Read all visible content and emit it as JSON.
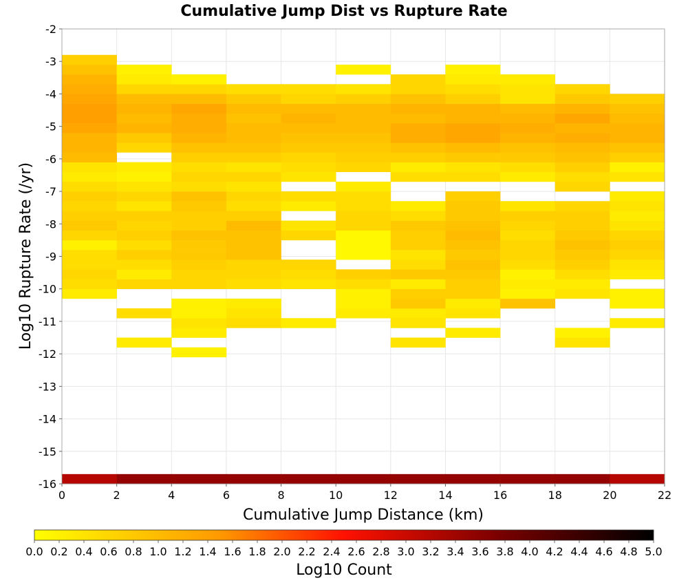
{
  "chart_data": {
    "type": "heatmap",
    "title": "Cumulative Jump Dist vs Rupture Rate",
    "xlabel": "Cumulative Jump Distance (km)",
    "ylabel": "Log10 Rupture Rate (/yr)",
    "colorbar_label": "Log10 Count",
    "xlim": [
      0,
      22
    ],
    "ylim": [
      -16,
      -2
    ],
    "x_ticks": [
      "0",
      "2",
      "4",
      "6",
      "8",
      "10",
      "12",
      "14",
      "16",
      "18",
      "20",
      "22"
    ],
    "y_ticks": [
      "-2",
      "-3",
      "-4",
      "-5",
      "-6",
      "-7",
      "-8",
      "-9",
      "-10",
      "-11",
      "-12",
      "-13",
      "-14",
      "-15",
      "-16"
    ],
    "colorbar_ticks": [
      "0.0",
      "0.2",
      "0.4",
      "0.6",
      "0.8",
      "1.0",
      "1.2",
      "1.4",
      "1.6",
      "1.8",
      "2.0",
      "2.2",
      "2.4",
      "2.6",
      "2.8",
      "3.0",
      "3.2",
      "3.4",
      "3.6",
      "3.8",
      "4.0",
      "4.2",
      "4.4",
      "4.6",
      "4.8",
      "5.0"
    ],
    "colorbar_range": [
      0,
      5
    ],
    "x_bin_width_km": 2,
    "y_bin_height": 0.3,
    "grid": true,
    "bins": [
      {
        "x": 0,
        "values": [
          [
            -16.0,
            3.2
          ],
          [
            -10.3,
            0.3
          ],
          [
            -10.0,
            0.5
          ],
          [
            -9.7,
            0.6
          ],
          [
            -9.4,
            0.5
          ],
          [
            -9.1,
            0.5
          ],
          [
            -8.8,
            0.2
          ],
          [
            -8.5,
            0.6
          ],
          [
            -8.2,
            0.8
          ],
          [
            -7.9,
            0.7
          ],
          [
            -7.6,
            0.6
          ],
          [
            -7.3,
            0.7
          ],
          [
            -7.0,
            0.5
          ],
          [
            -6.7,
            0.3
          ],
          [
            -6.4,
            0.4
          ],
          [
            -6.1,
            1.0
          ],
          [
            -5.8,
            1.1
          ],
          [
            -5.5,
            1.1
          ],
          [
            -5.2,
            1.3
          ],
          [
            -4.9,
            1.4
          ],
          [
            -4.6,
            1.4
          ],
          [
            -4.3,
            1.3
          ],
          [
            -4.0,
            1.2
          ],
          [
            -3.7,
            1.1
          ],
          [
            -3.4,
            0.9
          ],
          [
            -3.1,
            0.7
          ]
        ]
      },
      {
        "x": 2,
        "values": [
          [
            -16.0,
            3.5
          ],
          [
            -11.8,
            0.3
          ],
          [
            -10.9,
            0.5
          ],
          [
            -10.0,
            0.6
          ],
          [
            -9.7,
            0.3
          ],
          [
            -9.4,
            0.5
          ],
          [
            -9.1,
            0.7
          ],
          [
            -8.8,
            0.5
          ],
          [
            -8.5,
            0.7
          ],
          [
            -8.2,
            0.6
          ],
          [
            -7.9,
            0.7
          ],
          [
            -7.6,
            0.4
          ],
          [
            -7.3,
            0.6
          ],
          [
            -7.0,
            0.4
          ],
          [
            -6.7,
            0.2
          ],
          [
            -6.4,
            0.3
          ],
          [
            -5.8,
            0.6
          ],
          [
            -5.5,
            0.8
          ],
          [
            -5.2,
            1.1
          ],
          [
            -4.9,
            1.0
          ],
          [
            -4.6,
            1.1
          ],
          [
            -4.3,
            1.0
          ],
          [
            -4.0,
            0.6
          ],
          [
            -3.7,
            0.3
          ],
          [
            -3.4,
            0.2
          ]
        ]
      },
      {
        "x": 4,
        "values": [
          [
            -16.0,
            3.5
          ],
          [
            -12.1,
            0.2
          ],
          [
            -11.5,
            0.3
          ],
          [
            -11.2,
            0.4
          ],
          [
            -10.9,
            0.2
          ],
          [
            -10.6,
            0.2
          ],
          [
            -10.0,
            0.6
          ],
          [
            -9.7,
            0.6
          ],
          [
            -9.4,
            0.7
          ],
          [
            -9.1,
            0.8
          ],
          [
            -8.8,
            0.8
          ],
          [
            -8.5,
            0.9
          ],
          [
            -8.2,
            0.7
          ],
          [
            -7.9,
            0.7
          ],
          [
            -7.6,
            0.8
          ],
          [
            -7.3,
            0.9
          ],
          [
            -7.0,
            0.5
          ],
          [
            -6.7,
            0.6
          ],
          [
            -6.4,
            0.5
          ],
          [
            -6.1,
            0.7
          ],
          [
            -5.8,
            0.9
          ],
          [
            -5.5,
            1.1
          ],
          [
            -5.2,
            1.2
          ],
          [
            -4.9,
            1.2
          ],
          [
            -4.6,
            1.3
          ],
          [
            -4.3,
            1.0
          ],
          [
            -4.0,
            0.6
          ],
          [
            -3.7,
            0.2
          ]
        ]
      },
      {
        "x": 6,
        "values": [
          [
            -16.0,
            3.5
          ],
          [
            -11.2,
            0.5
          ],
          [
            -10.9,
            0.4
          ],
          [
            -10.6,
            0.3
          ],
          [
            -10.0,
            0.5
          ],
          [
            -9.7,
            0.6
          ],
          [
            -9.4,
            0.6
          ],
          [
            -9.1,
            0.9
          ],
          [
            -8.8,
            0.9
          ],
          [
            -8.5,
            0.9
          ],
          [
            -8.2,
            1.0
          ],
          [
            -7.9,
            0.7
          ],
          [
            -7.6,
            0.5
          ],
          [
            -7.3,
            0.6
          ],
          [
            -7.0,
            0.4
          ],
          [
            -6.7,
            0.6
          ],
          [
            -6.4,
            0.4
          ],
          [
            -6.1,
            0.7
          ],
          [
            -5.8,
            0.9
          ],
          [
            -5.5,
            1.0
          ],
          [
            -5.2,
            1.0
          ],
          [
            -4.9,
            0.9
          ],
          [
            -4.6,
            1.0
          ],
          [
            -4.3,
            0.8
          ],
          [
            -4.0,
            0.5
          ]
        ]
      },
      {
        "x": 8,
        "values": [
          [
            -16.0,
            3.5
          ],
          [
            -11.2,
            0.3
          ],
          [
            -10.0,
            0.4
          ],
          [
            -9.7,
            0.5
          ],
          [
            -9.4,
            0.6
          ],
          [
            -8.5,
            0.6
          ],
          [
            -8.2,
            0.4
          ],
          [
            -7.6,
            0.3
          ],
          [
            -7.3,
            0.5
          ],
          [
            -6.7,
            0.4
          ],
          [
            -6.4,
            0.5
          ],
          [
            -6.1,
            0.6
          ],
          [
            -5.8,
            0.8
          ],
          [
            -5.5,
            0.9
          ],
          [
            -5.2,
            1.0
          ],
          [
            -4.9,
            1.1
          ],
          [
            -4.6,
            1.0
          ],
          [
            -4.3,
            0.6
          ],
          [
            -4.0,
            0.5
          ]
        ]
      },
      {
        "x": 10,
        "values": [
          [
            -16.0,
            3.5
          ],
          [
            -10.9,
            0.3
          ],
          [
            -10.6,
            0.2
          ],
          [
            -10.3,
            0.2
          ],
          [
            -10.0,
            0.5
          ],
          [
            -9.7,
            0.7
          ],
          [
            -9.1,
            0.1
          ],
          [
            -8.8,
            0.1
          ],
          [
            -8.5,
            0.1
          ],
          [
            -8.2,
            0.6
          ],
          [
            -7.9,
            0.6
          ],
          [
            -7.6,
            0.5
          ],
          [
            -7.3,
            0.5
          ],
          [
            -7.0,
            0.3
          ],
          [
            -6.4,
            0.6
          ],
          [
            -6.1,
            0.7
          ],
          [
            -5.8,
            0.8
          ],
          [
            -5.5,
            0.9
          ],
          [
            -5.2,
            1.0
          ],
          [
            -4.9,
            1.0
          ],
          [
            -4.6,
            1.0
          ],
          [
            -4.3,
            0.7
          ],
          [
            -4.0,
            0.4
          ],
          [
            -3.4,
            0.2
          ]
        ]
      },
      {
        "x": 12,
        "values": [
          [
            -16.0,
            3.5
          ],
          [
            -11.8,
            0.4
          ],
          [
            -11.2,
            0.4
          ],
          [
            -10.9,
            0.3
          ],
          [
            -10.6,
            0.8
          ],
          [
            -10.3,
            0.7
          ],
          [
            -10.0,
            0.3
          ],
          [
            -9.7,
            0.8
          ],
          [
            -9.4,
            0.5
          ],
          [
            -9.1,
            0.4
          ],
          [
            -8.8,
            0.7
          ],
          [
            -8.5,
            0.7
          ],
          [
            -8.2,
            0.8
          ],
          [
            -7.9,
            0.5
          ],
          [
            -7.6,
            0.3
          ],
          [
            -6.7,
            0.5
          ],
          [
            -6.4,
            0.3
          ],
          [
            -6.1,
            0.7
          ],
          [
            -5.8,
            0.9
          ],
          [
            -5.5,
            1.2
          ],
          [
            -5.2,
            1.2
          ],
          [
            -4.9,
            1.0
          ],
          [
            -4.6,
            1.1
          ],
          [
            -4.3,
            0.9
          ],
          [
            -4.0,
            0.6
          ],
          [
            -3.7,
            0.6
          ]
        ]
      },
      {
        "x": 14,
        "values": [
          [
            -16.0,
            3.5
          ],
          [
            -11.5,
            0.3
          ],
          [
            -10.9,
            0.4
          ],
          [
            -10.6,
            0.3
          ],
          [
            -10.3,
            0.7
          ],
          [
            -10.0,
            0.7
          ],
          [
            -9.7,
            0.8
          ],
          [
            -9.4,
            0.9
          ],
          [
            -9.1,
            0.8
          ],
          [
            -8.8,
            0.9
          ],
          [
            -8.5,
            1.0
          ],
          [
            -8.2,
            0.9
          ],
          [
            -7.9,
            0.8
          ],
          [
            -7.6,
            0.8
          ],
          [
            -7.3,
            0.7
          ],
          [
            -6.7,
            0.5
          ],
          [
            -6.4,
            0.4
          ],
          [
            -6.1,
            0.8
          ],
          [
            -5.8,
            1.0
          ],
          [
            -5.5,
            1.3
          ],
          [
            -5.2,
            1.3
          ],
          [
            -4.9,
            1.1
          ],
          [
            -4.6,
            1.1
          ],
          [
            -4.3,
            0.7
          ],
          [
            -4.0,
            0.5
          ],
          [
            -3.7,
            0.3
          ],
          [
            -3.4,
            0.2
          ]
        ]
      },
      {
        "x": 16,
        "values": [
          [
            -16.0,
            3.5
          ],
          [
            -10.6,
            0.9
          ],
          [
            -10.3,
            0.2
          ],
          [
            -10.0,
            0.3
          ],
          [
            -9.7,
            0.2
          ],
          [
            -9.4,
            0.5
          ],
          [
            -9.1,
            0.6
          ],
          [
            -8.8,
            0.6
          ],
          [
            -8.5,
            0.5
          ],
          [
            -8.2,
            0.6
          ],
          [
            -7.9,
            0.7
          ],
          [
            -7.6,
            0.4
          ],
          [
            -6.7,
            0.3
          ],
          [
            -6.4,
            0.5
          ],
          [
            -6.1,
            0.8
          ],
          [
            -5.8,
            0.9
          ],
          [
            -5.5,
            1.1
          ],
          [
            -5.2,
            1.2
          ],
          [
            -4.9,
            1.1
          ],
          [
            -4.6,
            1.0
          ],
          [
            -4.3,
            0.4
          ],
          [
            -4.0,
            0.4
          ],
          [
            -3.7,
            0.3
          ]
        ]
      },
      {
        "x": 18,
        "values": [
          [
            -16.0,
            3.5
          ],
          [
            -11.8,
            0.4
          ],
          [
            -11.5,
            0.2
          ],
          [
            -10.3,
            0.4
          ],
          [
            -10.0,
            0.3
          ],
          [
            -9.7,
            0.5
          ],
          [
            -9.4,
            0.7
          ],
          [
            -9.1,
            0.8
          ],
          [
            -8.8,
            0.9
          ],
          [
            -8.5,
            0.8
          ],
          [
            -8.2,
            0.7
          ],
          [
            -7.9,
            0.7
          ],
          [
            -7.6,
            0.6
          ],
          [
            -7.0,
            0.6
          ],
          [
            -6.7,
            0.5
          ],
          [
            -6.4,
            0.7
          ],
          [
            -6.1,
            0.9
          ],
          [
            -5.8,
            1.0
          ],
          [
            -5.5,
            1.2
          ],
          [
            -5.2,
            1.1
          ],
          [
            -4.9,
            1.3
          ],
          [
            -4.6,
            1.1
          ],
          [
            -4.3,
            0.8
          ],
          [
            -4.0,
            0.6
          ]
        ]
      },
      {
        "x": 20,
        "values": [
          [
            -16.0,
            3.2
          ],
          [
            -11.2,
            0.3
          ],
          [
            -10.6,
            0.2
          ],
          [
            -10.3,
            0.2
          ],
          [
            -9.7,
            0.3
          ],
          [
            -9.4,
            0.4
          ],
          [
            -9.1,
            0.6
          ],
          [
            -8.8,
            0.7
          ],
          [
            -8.5,
            0.6
          ],
          [
            -8.2,
            0.4
          ],
          [
            -7.9,
            0.3
          ],
          [
            -7.6,
            0.4
          ],
          [
            -7.3,
            0.3
          ],
          [
            -6.7,
            0.4
          ],
          [
            -6.4,
            0.2
          ],
          [
            -6.1,
            0.7
          ],
          [
            -5.8,
            0.9
          ],
          [
            -5.5,
            1.1
          ],
          [
            -5.2,
            1.1
          ],
          [
            -4.9,
            1.0
          ],
          [
            -4.6,
            0.9
          ],
          [
            -4.3,
            0.7
          ]
        ]
      }
    ]
  }
}
